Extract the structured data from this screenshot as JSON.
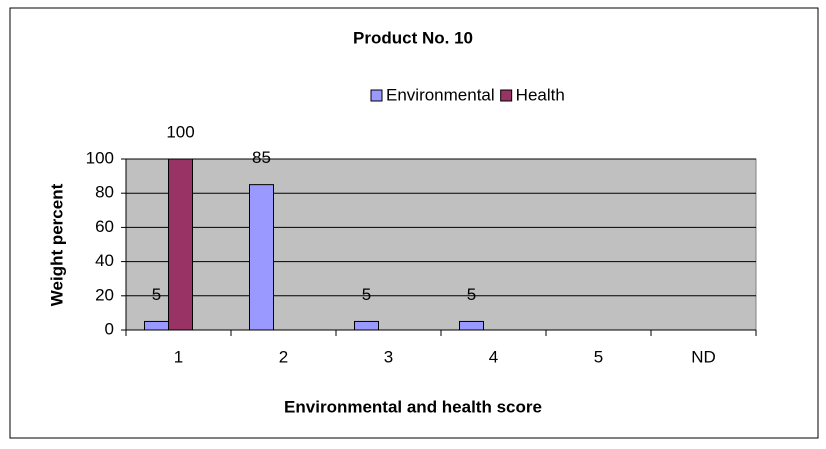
{
  "chart_data": {
    "type": "bar",
    "title": "Product No. 10",
    "x_label": "Environmental and health score",
    "y_label": "Weight percent",
    "categories": [
      "1",
      "2",
      "3",
      "4",
      "5",
      "ND"
    ],
    "series": [
      {
        "name": "Environmental",
        "color": "#9999ff",
        "values": [
          5,
          85,
          5,
          5,
          null,
          null
        ]
      },
      {
        "name": "Health",
        "color": "#993366",
        "values": [
          100,
          null,
          null,
          null,
          null,
          null
        ]
      }
    ],
    "ylim": [
      0,
      100
    ],
    "yticks": [
      0,
      20,
      40,
      60,
      80,
      100
    ],
    "grid": true,
    "legend": "top"
  }
}
